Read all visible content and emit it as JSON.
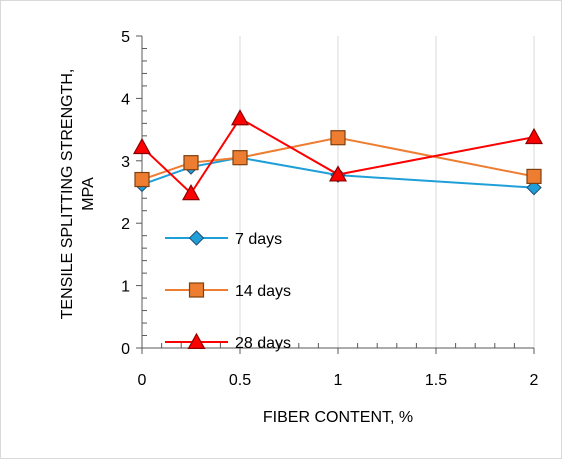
{
  "chart_data": {
    "type": "line",
    "title": "",
    "xlabel": "FIBER CONTENT, %",
    "ylabel_lines": [
      "TENSILE SPLITTING STRENGTH,",
      "MPA"
    ],
    "xlim": [
      0,
      2
    ],
    "ylim": [
      0,
      5
    ],
    "x_ticks": [
      0,
      0.5,
      1,
      1.5,
      2
    ],
    "x_tick_labels": [
      "0",
      "0.5",
      "1",
      "1.5",
      "2"
    ],
    "y_ticks": [
      0,
      1,
      2,
      3,
      4,
      5
    ],
    "y_tick_labels": [
      "0",
      "1",
      "2",
      "3",
      "4",
      "5"
    ],
    "grid": "vertical",
    "legend_position": "inside-lower-left",
    "series": [
      {
        "name": "7 days",
        "color": "#1f9fd8",
        "marker": "diamond",
        "x": [
          0,
          0.25,
          0.5,
          1,
          2
        ],
        "y": [
          2.62,
          2.9,
          3.05,
          2.77,
          2.57
        ]
      },
      {
        "name": "14 days",
        "color": "#ed7d31",
        "marker": "square",
        "x": [
          0,
          0.25,
          0.5,
          1,
          2
        ],
        "y": [
          2.7,
          2.97,
          3.05,
          3.37,
          2.75
        ]
      },
      {
        "name": "28 days",
        "color": "#ff0000",
        "marker": "triangle",
        "x": [
          0,
          0.25,
          0.5,
          1,
          2
        ],
        "y": [
          3.22,
          2.48,
          3.68,
          2.78,
          3.38
        ]
      }
    ]
  }
}
